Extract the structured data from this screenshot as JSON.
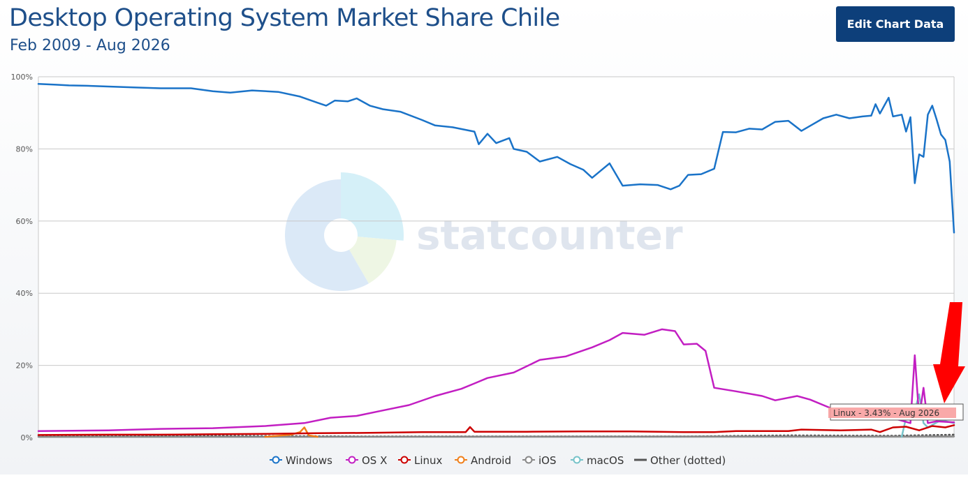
{
  "header": {
    "title": "Desktop Operating System Market Share Chile",
    "subtitle": "Feb 2009 - Aug 2026",
    "edit_button_label": "Edit Chart Data"
  },
  "watermark": {
    "text": "statcounter"
  },
  "tooltip": {
    "text": "Linux - 3.43% - Aug 2026"
  },
  "colors": {
    "windows": "#1a73c8",
    "osx": "#c21ec2",
    "linux": "#cc0000",
    "android": "#f07f1a",
    "ios": "#888888",
    "macos": "#76c3c9",
    "other": "#555555",
    "grid": "#c8c8c8",
    "arrow": "#ff0000",
    "tooltip_highlight": "#f8a0a0"
  },
  "chart_data": {
    "type": "line",
    "ylim": [
      0,
      100
    ],
    "y_ticks": [
      "0%",
      "20%",
      "40%",
      "60%",
      "80%",
      "100%"
    ],
    "y_tick_values": [
      0,
      20,
      40,
      60,
      80,
      100
    ],
    "x_range": [
      "2009-02",
      "2026-08"
    ],
    "grid": true,
    "legend_position": "bottom",
    "series": [
      {
        "name": "Windows",
        "key": "windows",
        "style": "solid",
        "points": [
          [
            "2009-02",
            98.0
          ],
          [
            "2009-06",
            97.8
          ],
          [
            "2009-09",
            97.6
          ],
          [
            "2010-01",
            97.5
          ],
          [
            "2010-06",
            97.3
          ],
          [
            "2011-01",
            97.0
          ],
          [
            "2011-06",
            96.8
          ],
          [
            "2012-01",
            96.8
          ],
          [
            "2012-06",
            96.0
          ],
          [
            "2012-10",
            95.6
          ],
          [
            "2013-03",
            96.2
          ],
          [
            "2013-09",
            95.8
          ],
          [
            "2014-02",
            94.5
          ],
          [
            "2014-06",
            92.8
          ],
          [
            "2014-08",
            92.0
          ],
          [
            "2014-10",
            93.4
          ],
          [
            "2015-01",
            93.2
          ],
          [
            "2015-03",
            94.0
          ],
          [
            "2015-06",
            92.0
          ],
          [
            "2015-09",
            91.0
          ],
          [
            "2016-01",
            90.3
          ],
          [
            "2016-06",
            88.0
          ],
          [
            "2016-09",
            86.5
          ],
          [
            "2017-01",
            86.0
          ],
          [
            "2017-06",
            84.8
          ],
          [
            "2017-07",
            81.3
          ],
          [
            "2017-09",
            84.2
          ],
          [
            "2017-11",
            81.6
          ],
          [
            "2018-02",
            83.0
          ],
          [
            "2018-03",
            80.0
          ],
          [
            "2018-06",
            79.2
          ],
          [
            "2018-09",
            76.5
          ],
          [
            "2019-01",
            77.8
          ],
          [
            "2019-04",
            75.8
          ],
          [
            "2019-07",
            74.2
          ],
          [
            "2019-09",
            72.0
          ],
          [
            "2019-11",
            74.0
          ],
          [
            "2020-01",
            76.0
          ],
          [
            "2020-04",
            69.8
          ],
          [
            "2020-08",
            70.2
          ],
          [
            "2020-12",
            70.0
          ],
          [
            "2021-03",
            68.8
          ],
          [
            "2021-05",
            69.8
          ],
          [
            "2021-07",
            72.8
          ],
          [
            "2021-10",
            73.0
          ],
          [
            "2022-01",
            74.5
          ],
          [
            "2022-03",
            84.7
          ],
          [
            "2022-06",
            84.6
          ],
          [
            "2022-09",
            85.6
          ],
          [
            "2022-12",
            85.4
          ],
          [
            "2023-03",
            87.5
          ],
          [
            "2023-06",
            87.8
          ],
          [
            "2023-09",
            85.0
          ],
          [
            "2023-11",
            86.4
          ],
          [
            "2024-02",
            88.5
          ],
          [
            "2024-05",
            89.5
          ],
          [
            "2024-08",
            88.5
          ],
          [
            "2024-11",
            89.0
          ],
          [
            "2025-01",
            89.2
          ],
          [
            "2025-02",
            92.4
          ],
          [
            "2025-03",
            89.8
          ],
          [
            "2025-04",
            92.0
          ],
          [
            "2025-05",
            94.2
          ],
          [
            "2025-06",
            89.0
          ],
          [
            "2025-08",
            89.5
          ],
          [
            "2025-09",
            84.8
          ],
          [
            "2025-10",
            88.8
          ],
          [
            "2025-11",
            70.5
          ],
          [
            "2025-12",
            78.5
          ],
          [
            "2026-01",
            77.8
          ],
          [
            "2026-02",
            89.5
          ],
          [
            "2026-03",
            92.0
          ],
          [
            "2026-04",
            88.2
          ],
          [
            "2026-05",
            84.0
          ],
          [
            "2026-06",
            82.5
          ],
          [
            "2026-07",
            76.5
          ],
          [
            "2026-08",
            56.8
          ]
        ]
      },
      {
        "name": "OS X",
        "key": "osx",
        "style": "solid",
        "points": [
          [
            "2009-02",
            1.8
          ],
          [
            "2010-06",
            2.0
          ],
          [
            "2011-06",
            2.4
          ],
          [
            "2012-06",
            2.6
          ],
          [
            "2013-06",
            3.2
          ],
          [
            "2014-03",
            4.0
          ],
          [
            "2014-09",
            5.5
          ],
          [
            "2015-03",
            6.0
          ],
          [
            "2015-09",
            7.5
          ],
          [
            "2016-03",
            9.0
          ],
          [
            "2016-09",
            11.5
          ],
          [
            "2017-03",
            13.5
          ],
          [
            "2017-06",
            15.0
          ],
          [
            "2017-09",
            16.5
          ],
          [
            "2018-03",
            18.0
          ],
          [
            "2018-09",
            21.5
          ],
          [
            "2019-03",
            22.5
          ],
          [
            "2019-09",
            25.0
          ],
          [
            "2020-01",
            27.0
          ],
          [
            "2020-04",
            29.0
          ],
          [
            "2020-09",
            28.5
          ],
          [
            "2021-01",
            30.0
          ],
          [
            "2021-04",
            29.5
          ],
          [
            "2021-06",
            25.8
          ],
          [
            "2021-09",
            26.0
          ],
          [
            "2021-11",
            24.0
          ],
          [
            "2022-01",
            13.8
          ],
          [
            "2022-06",
            12.8
          ],
          [
            "2022-12",
            11.5
          ],
          [
            "2023-03",
            10.3
          ],
          [
            "2023-08",
            11.5
          ],
          [
            "2023-11",
            10.5
          ],
          [
            "2024-04",
            8.0
          ],
          [
            "2024-09",
            9.0
          ],
          [
            "2025-01",
            8.8
          ],
          [
            "2025-02",
            5.8
          ],
          [
            "2025-04",
            9.0
          ],
          [
            "2025-07",
            5.0
          ],
          [
            "2025-10",
            4.0
          ],
          [
            "2025-11",
            22.8
          ],
          [
            "2025-12",
            5.5
          ],
          [
            "2026-01",
            13.8
          ],
          [
            "2026-02",
            4.0
          ],
          [
            "2026-04",
            4.5
          ],
          [
            "2026-08",
            4.2
          ]
        ]
      },
      {
        "name": "Linux",
        "key": "linux",
        "style": "solid",
        "points": [
          [
            "2009-02",
            0.7
          ],
          [
            "2010-06",
            0.8
          ],
          [
            "2011-06",
            0.8
          ],
          [
            "2012-06",
            0.9
          ],
          [
            "2013-06",
            1.0
          ],
          [
            "2014-06",
            1.2
          ],
          [
            "2015-06",
            1.3
          ],
          [
            "2016-06",
            1.5
          ],
          [
            "2017-04",
            1.5
          ],
          [
            "2017-05",
            2.9
          ],
          [
            "2017-06",
            1.6
          ],
          [
            "2018-06",
            1.6
          ],
          [
            "2019-06",
            1.7
          ],
          [
            "2020-06",
            1.7
          ],
          [
            "2021-06",
            1.5
          ],
          [
            "2022-01",
            1.5
          ],
          [
            "2022-06",
            1.8
          ],
          [
            "2023-06",
            1.8
          ],
          [
            "2023-09",
            2.2
          ],
          [
            "2024-06",
            2.0
          ],
          [
            "2025-01",
            2.2
          ],
          [
            "2025-03",
            1.5
          ],
          [
            "2025-06",
            2.8
          ],
          [
            "2025-09",
            3.0
          ],
          [
            "2025-12",
            2.0
          ],
          [
            "2026-03",
            3.2
          ],
          [
            "2026-06",
            2.8
          ],
          [
            "2026-08",
            3.43
          ]
        ]
      },
      {
        "name": "Android",
        "key": "android",
        "style": "solid",
        "points": [
          [
            "2013-06",
            0.2
          ],
          [
            "2013-12",
            0.8
          ],
          [
            "2014-02",
            1.5
          ],
          [
            "2014-03",
            2.8
          ],
          [
            "2014-04",
            0.6
          ],
          [
            "2014-06",
            0.2
          ]
        ]
      },
      {
        "name": "iOS",
        "key": "ios",
        "style": "solid",
        "points": [
          [
            "2009-02",
            0.2
          ],
          [
            "2026-08",
            0.3
          ]
        ]
      },
      {
        "name": "macOS",
        "key": "macos",
        "style": "solid",
        "points": [
          [
            "2025-08",
            0.2
          ],
          [
            "2025-09",
            5.5
          ],
          [
            "2025-11",
            7.5
          ],
          [
            "2025-12",
            12.0
          ],
          [
            "2026-01",
            4.0
          ],
          [
            "2026-02",
            2.8
          ],
          [
            "2026-03",
            3.5
          ],
          [
            "2026-05",
            4.8
          ],
          [
            "2026-08",
            4.0
          ]
        ]
      },
      {
        "name": "Other (dotted)",
        "key": "other",
        "style": "dotted",
        "points": [
          [
            "2009-02",
            0.6
          ],
          [
            "2012-06",
            0.5
          ],
          [
            "2015-06",
            0.3
          ],
          [
            "2018-06",
            0.3
          ],
          [
            "2021-06",
            0.3
          ],
          [
            "2023-06",
            0.6
          ],
          [
            "2025-06",
            0.5
          ],
          [
            "2026-08",
            0.8
          ]
        ]
      }
    ]
  },
  "legend": {
    "items": [
      {
        "label": "Windows",
        "key": "windows",
        "marker": "circle"
      },
      {
        "label": "OS X",
        "key": "osx",
        "marker": "circle"
      },
      {
        "label": "Linux",
        "key": "linux",
        "marker": "circle"
      },
      {
        "label": "Android",
        "key": "android",
        "marker": "circle"
      },
      {
        "label": "iOS",
        "key": "ios",
        "marker": "circle"
      },
      {
        "label": "macOS",
        "key": "macos",
        "marker": "circle"
      },
      {
        "label": "Other (dotted)",
        "key": "other",
        "marker": "line"
      }
    ]
  }
}
